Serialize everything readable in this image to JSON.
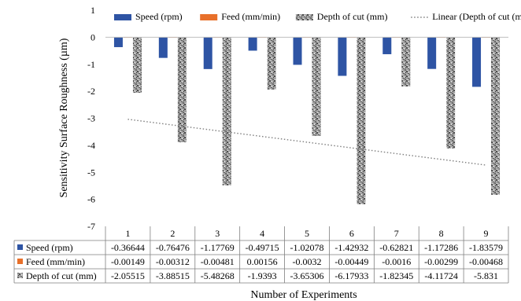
{
  "chart_data": {
    "type": "bar",
    "categories": [
      "1",
      "2",
      "3",
      "4",
      "5",
      "6",
      "7",
      "8",
      "9"
    ],
    "series": [
      {
        "name": "Speed (rpm)",
        "color": "#2e54a4",
        "pattern": "solid",
        "values": [
          -0.36644,
          -0.76476,
          -1.17769,
          -0.49715,
          -1.02078,
          -1.42932,
          -0.62821,
          -1.17286,
          -1.83579
        ],
        "labels": [
          "-0.36644",
          "-0.76476",
          "-1.17769",
          "-0.49715",
          "-1.02078",
          "-1.42932",
          "-0.62821",
          "-1.17286",
          "-1.83579"
        ]
      },
      {
        "name": "Feed (mm/min)",
        "color": "#e8702a",
        "pattern": "solid",
        "values": [
          -0.00149,
          -0.00312,
          -0.00481,
          0.00156,
          -0.0032,
          -0.00449,
          -0.0016,
          -0.00299,
          -0.00468
        ],
        "labels": [
          "-0.00149",
          "-0.00312",
          "-0.00481",
          "0.00156",
          "-0.0032",
          "-0.00449",
          "-0.0016",
          "-0.00299",
          "-0.00468"
        ]
      },
      {
        "name": "Depth of cut (mm)",
        "color": "#8c8c8c",
        "pattern": "speckle",
        "values": [
          -2.05515,
          -3.88515,
          -5.48268,
          -1.9393,
          -3.65306,
          -6.17933,
          -1.82345,
          -4.11724,
          -5.831
        ],
        "labels": [
          "-2.05515",
          "-3.88515",
          "-5.48268",
          "-1.9393",
          "-3.65306",
          "-6.17933",
          "-1.82345",
          "-4.11724",
          "-5.831"
        ]
      }
    ],
    "trendline": {
      "name": "Linear (Depth of cut (mm))",
      "of_series": "Depth of cut (mm)",
      "style": "dotted",
      "color": "#7f7f7f"
    },
    "ylabel": "Sensitivity Surface Roughness (µm)",
    "xlabel": "Number of Experiments",
    "ylim": [
      -7,
      1
    ],
    "yticks": [
      "1",
      "0",
      "-1",
      "-2",
      "-3",
      "-4",
      "-5",
      "-6",
      "-7"
    ],
    "legend_position": "top",
    "data_table": true,
    "grid": false
  }
}
